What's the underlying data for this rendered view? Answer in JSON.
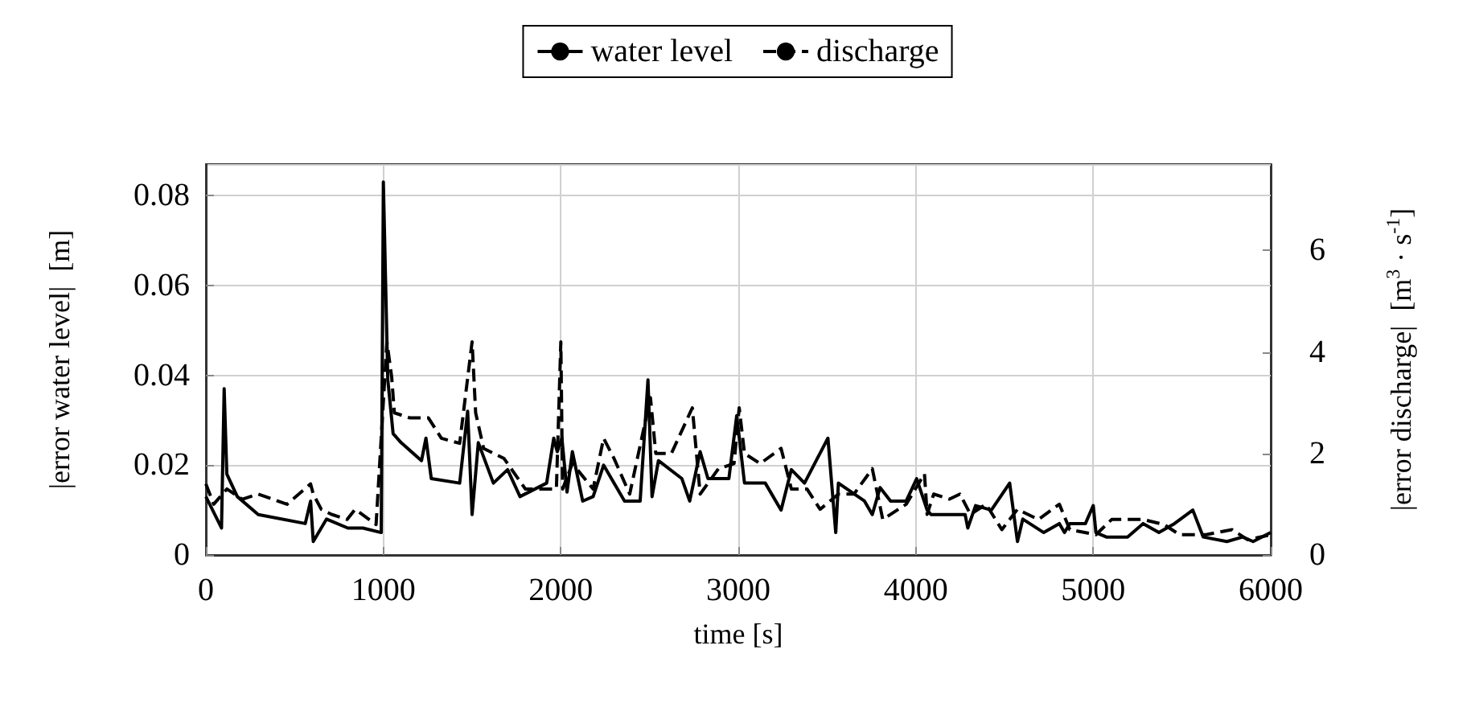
{
  "chart_data": {
    "type": "line",
    "xlabel": "time [s]",
    "ylabel": "|error water level|  [m]",
    "y2label": "|error discharge|  [m$^{3}$ · s$^{-1}$]",
    "xlim": [
      0,
      6000
    ],
    "xticks": [
      0,
      1000,
      2000,
      3000,
      4000,
      5000,
      6000
    ],
    "ylim": [
      0,
      0.087
    ],
    "yticks": [
      0,
      0.02,
      0.04,
      0.06,
      0.08
    ],
    "y2lim": [
      0,
      7.7
    ],
    "y2ticks": [
      0,
      2,
      4,
      6
    ],
    "grid": true,
    "legend": "top",
    "marker": "none",
    "series": [
      {
        "name": "water level",
        "color": "#000000",
        "line_style": "solid",
        "x": [
          0,
          88,
          103,
          118,
          177,
          295,
          560,
          590,
          605,
          680,
          800,
          885,
          988,
          1000,
          1025,
          1055,
          1100,
          1215,
          1240,
          1270,
          1430,
          1475,
          1500,
          1535,
          1620,
          1700,
          1770,
          1920,
          1960,
          1980,
          2006,
          2035,
          2065,
          2123,
          2182,
          2241,
          2285,
          2359,
          2447,
          2491,
          2514,
          2550,
          2682,
          2726,
          2785,
          2829,
          2947,
          2991,
          3035,
          3152,
          3241,
          3299,
          3373,
          3505,
          3549,
          3564,
          3711,
          3755,
          3799,
          3858,
          3946,
          4005,
          4064,
          4086,
          4278,
          4293,
          4337,
          4426,
          4529,
          4573,
          4603,
          4721,
          4809,
          4838,
          4868,
          4956,
          5000,
          5015,
          5074,
          5193,
          5281,
          5370,
          5458,
          5561,
          5620,
          5753,
          5842,
          5901,
          6000
        ],
        "values": [
          0.013,
          0.006,
          0.037,
          0.018,
          0.013,
          0.009,
          0.007,
          0.012,
          0.003,
          0.008,
          0.006,
          0.006,
          0.005,
          0.083,
          0.039,
          0.027,
          0.025,
          0.021,
          0.026,
          0.017,
          0.016,
          0.032,
          0.009,
          0.025,
          0.016,
          0.019,
          0.013,
          0.016,
          0.026,
          0.023,
          0.026,
          0.014,
          0.023,
          0.012,
          0.013,
          0.02,
          0.017,
          0.012,
          0.012,
          0.039,
          0.013,
          0.021,
          0.017,
          0.012,
          0.023,
          0.017,
          0.017,
          0.031,
          0.016,
          0.016,
          0.01,
          0.019,
          0.016,
          0.026,
          0.005,
          0.016,
          0.012,
          0.009,
          0.015,
          0.012,
          0.012,
          0.017,
          0.01,
          0.009,
          0.009,
          0.006,
          0.011,
          0.01,
          0.016,
          0.003,
          0.008,
          0.005,
          0.007,
          0.005,
          0.007,
          0.007,
          0.011,
          0.005,
          0.004,
          0.004,
          0.007,
          0.005,
          0.007,
          0.01,
          0.004,
          0.003,
          0.004,
          0.003,
          0.005
        ]
      },
      {
        "name": "discharge",
        "color": "#000000",
        "line_style": "dashed",
        "axis": "y2",
        "x": [
          0,
          44,
          118,
          206,
          295,
          457,
          590,
          605,
          650,
          708,
          796,
          841,
          959,
          1020,
          1047,
          1062,
          1150,
          1254,
          1327,
          1430,
          1500,
          1520,
          1565,
          1680,
          1800,
          1975,
          2000,
          2010,
          2065,
          2182,
          2241,
          2300,
          2388,
          2505,
          2535,
          2623,
          2741,
          2785,
          2888,
          2976,
          3005,
          3035,
          3123,
          3241,
          3299,
          3387,
          3461,
          3564,
          3652,
          3755,
          3814,
          3946,
          4049,
          4064,
          4101,
          4190,
          4249,
          4308,
          4396,
          4485,
          4573,
          4691,
          4809,
          4868,
          5015,
          5104,
          5281,
          5399,
          5487,
          5635,
          5782,
          5871,
          6000
        ],
        "values": [
          1.4,
          1.0,
          1.3,
          1.1,
          1.2,
          1.0,
          1.4,
          1.2,
          0.9,
          0.8,
          0.7,
          0.9,
          0.6,
          4.2,
          3.5,
          2.8,
          2.7,
          2.7,
          2.3,
          2.2,
          4.2,
          2.8,
          2.1,
          1.9,
          1.3,
          1.3,
          4.2,
          1.3,
          1.8,
          1.3,
          2.3,
          1.9,
          1.2,
          3.1,
          2.0,
          2.0,
          2.9,
          1.2,
          1.7,
          1.8,
          2.9,
          2.0,
          1.8,
          2.1,
          1.3,
          1.3,
          0.9,
          1.2,
          1.2,
          1.7,
          0.7,
          1.0,
          1.6,
          0.8,
          1.2,
          1.1,
          1.2,
          0.8,
          1.0,
          0.5,
          0.9,
          0.7,
          1.0,
          0.5,
          0.4,
          0.7,
          0.7,
          0.6,
          0.4,
          0.4,
          0.5,
          0.3,
          0.4
        ]
      }
    ]
  }
}
